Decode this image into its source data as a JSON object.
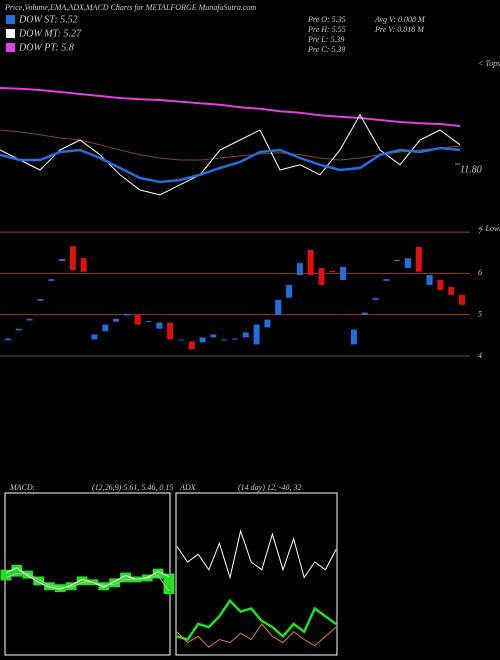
{
  "header": {
    "title": "Price,Volume,EMA,ADX,MACD Charts for METALFORGE MunafaSutra.com"
  },
  "legend": [
    {
      "label": "DOW ST: 5.52",
      "color": "#1f6fe0"
    },
    {
      "label": "DOW MT: 5.27",
      "color": "#ffffff"
    },
    {
      "label": "DOW PT: 5.8",
      "color": "#e040e0"
    }
  ],
  "info": [
    "Pre O: 5.35",
    "Pre H: 5.55",
    "Pre L: 5.39",
    "Pre C: 5.39",
    "Avg V: 0.008 M",
    "Pre V: 0.018 M"
  ],
  "chart_data": [
    {
      "type": "line",
      "annotation": "< Tops",
      "ylim": [
        10.9,
        14.4
      ],
      "yticks": [
        {
          "value": 11.8,
          "label": "11.80"
        }
      ],
      "series": [
        {
          "color": "#8b4513",
          "values": [
            12.65,
            12.6,
            12.53,
            12.45,
            12.4,
            12.28,
            12.15,
            12.03,
            11.95,
            11.9,
            11.9,
            11.95,
            12.0,
            12.05,
            12.08,
            12.03,
            11.95,
            11.9,
            11.95,
            12.03,
            12.1,
            12.15,
            12.2,
            12.25
          ]
        },
        {
          "color": "#e040e0",
          "values": [
            13.7,
            13.68,
            13.65,
            13.6,
            13.55,
            13.5,
            13.45,
            13.42,
            13.4,
            13.36,
            13.32,
            13.28,
            13.22,
            13.18,
            13.12,
            13.08,
            13.02,
            12.98,
            12.95,
            12.9,
            12.85,
            12.82,
            12.8,
            12.75
          ]
        },
        {
          "color": "#ffffff",
          "values": [
            12.15,
            11.9,
            11.65,
            12.15,
            12.4,
            12.03,
            11.53,
            11.15,
            11.03,
            11.28,
            11.53,
            12.15,
            12.4,
            12.65,
            11.65,
            11.78,
            11.53,
            12.15,
            13.03,
            12.15,
            11.78,
            12.4,
            12.65,
            12.28
          ]
        },
        {
          "color": "#1f6fe0",
          "values": [
            12.03,
            11.9,
            11.9,
            12.1,
            12.15,
            11.95,
            11.7,
            11.45,
            11.35,
            11.4,
            11.53,
            11.7,
            11.85,
            12.1,
            12.15,
            11.95,
            11.78,
            11.65,
            11.7,
            12.03,
            12.15,
            12.1,
            12.2,
            12.15
          ]
        }
      ]
    },
    {
      "type": "candlestick",
      "annotation": "< Lows",
      "ylim": [
        3.66,
        7.1
      ],
      "yticks": [
        7,
        6,
        5,
        4
      ],
      "grid": true,
      "up_color": "#1f6fe0",
      "down_color": "#e01010",
      "open": [
        4.38,
        4.62,
        4.86,
        5.34,
        5.82,
        6.3,
        6.66,
        6.37,
        4.4,
        4.6,
        4.83,
        4.98,
        5.0,
        4.83,
        4.66,
        4.81,
        4.38,
        4.35,
        4.33,
        4.45,
        4.38,
        4.4,
        4.45,
        4.28,
        4.69,
        5.0,
        5.41,
        5.96,
        6.57,
        6.13,
        6.06,
        5.84,
        4.28,
        5.0,
        5.36,
        5.82,
        6.3,
        6.13,
        6.64,
        5.72,
        5.84,
        5.67,
        5.48
      ],
      "close": [
        4.42,
        4.66,
        4.9,
        5.38,
        5.86,
        6.35,
        6.08,
        6.04,
        4.52,
        4.76,
        4.9,
        5.02,
        4.76,
        4.85,
        4.81,
        4.4,
        4.4,
        4.16,
        4.45,
        4.52,
        4.4,
        4.42,
        4.57,
        4.76,
        4.88,
        5.36,
        5.72,
        6.25,
        5.96,
        5.72,
        6.04,
        6.16,
        4.64,
        5.05,
        5.4,
        5.86,
        6.33,
        6.37,
        6.04,
        5.96,
        5.6,
        5.48,
        5.24
      ]
    },
    {
      "type": "macd",
      "title": "MACD:",
      "subtitle": "(12,26,9) 5.61, 5.46, 0.15",
      "ylim": [
        4.8,
        6.4
      ],
      "fill_color": "#20e020",
      "series": [
        {
          "color": "#ffffff",
          "values": [
            5.65,
            5.7,
            5.62,
            5.55,
            5.5,
            5.48,
            5.52,
            5.58,
            5.55,
            5.5,
            5.56,
            5.62,
            5.58,
            5.6,
            5.66,
            5.61
          ]
        },
        {
          "color": "#bbbbbb",
          "values": [
            5.6,
            5.64,
            5.64,
            5.58,
            5.52,
            5.5,
            5.5,
            5.55,
            5.55,
            5.52,
            5.53,
            5.58,
            5.58,
            5.59,
            5.62,
            5.46
          ]
        }
      ]
    },
    {
      "type": "adx",
      "title": "ADX",
      "subtitle": "(14 day) 12, -40, 32",
      "ylim": [
        0,
        100
      ],
      "series": [
        {
          "color": "#ffffff",
          "values": [
            70,
            60,
            65,
            55,
            72,
            50,
            80,
            60,
            55,
            78,
            55,
            75,
            50,
            60,
            55,
            68
          ]
        },
        {
          "color": "#20e020",
          "values": [
            12,
            10,
            20,
            18,
            25,
            35,
            28,
            30,
            22,
            18,
            12,
            20,
            15,
            30,
            25,
            20
          ]
        },
        {
          "color": "#e08020",
          "values": [
            15,
            8,
            12,
            5,
            10,
            8,
            14,
            10,
            20,
            12,
            8,
            15,
            10,
            6,
            12,
            18
          ]
        }
      ]
    }
  ]
}
